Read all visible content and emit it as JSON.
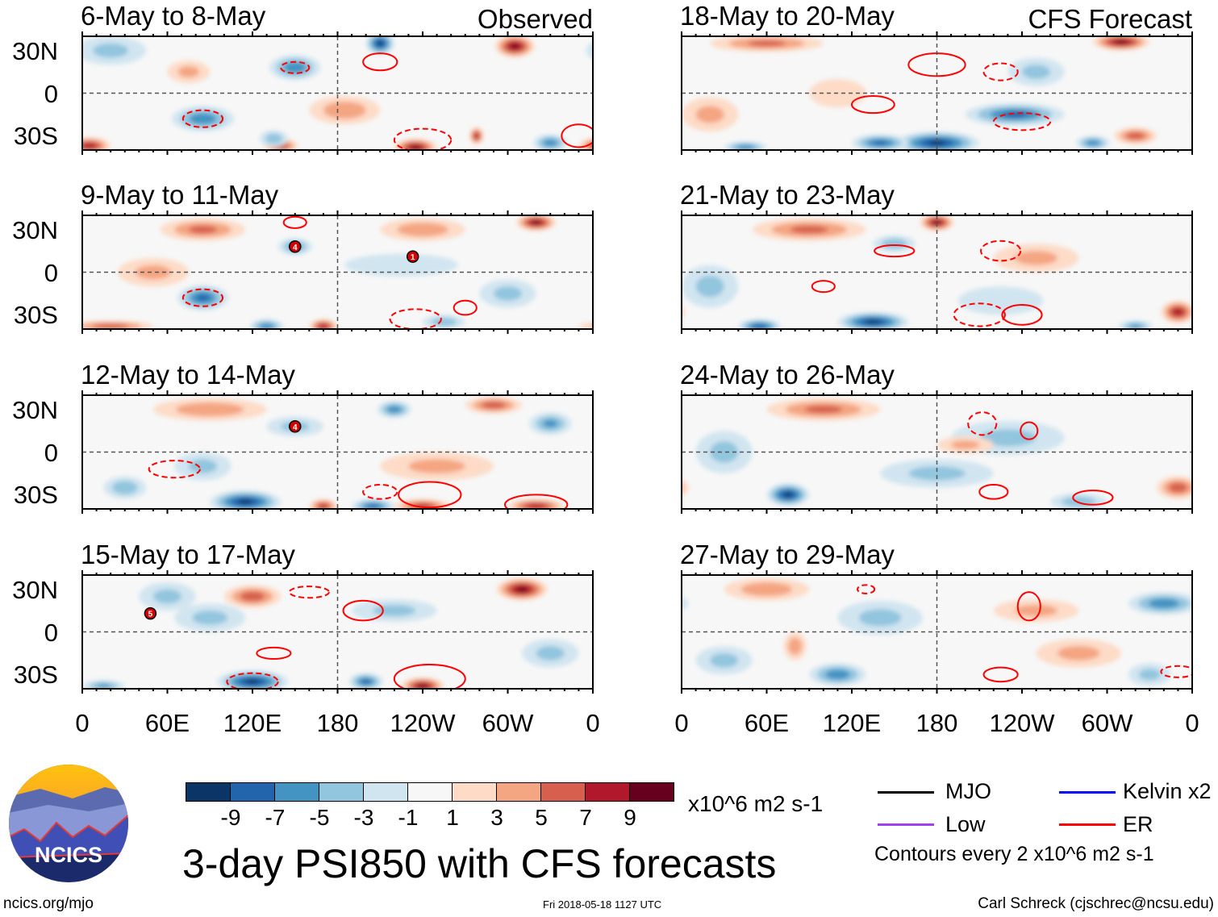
{
  "chart_data": {
    "type": "heatmap",
    "title": "3-day PSI850 with CFS forecasts",
    "units": "x10^6 m2 s-1",
    "x_ticks": [
      "0",
      "60E",
      "120E",
      "180",
      "120W",
      "60W",
      "0"
    ],
    "y_ticks": [
      "30N",
      "0",
      "30S"
    ],
    "lon_range": [
      0,
      360
    ],
    "lat_range": [
      -40,
      40
    ],
    "colorbar": {
      "labels": [
        "-9",
        "-7",
        "-5",
        "-3",
        "-1",
        "1",
        "3",
        "5",
        "7",
        "9"
      ],
      "colors": [
        "#0b3567",
        "#2265ad",
        "#4393c3",
        "#92c5de",
        "#d1e5f0",
        "#f7f7f7",
        "#fddbc7",
        "#f4a582",
        "#d6604d",
        "#b2182b",
        "#67001f"
      ]
    },
    "legend": {
      "items": [
        {
          "label": "MJO",
          "color": "#000000"
        },
        {
          "label": "Kelvin x2",
          "color": "#0000ff"
        },
        {
          "label": "Low",
          "color": "#a040f0"
        },
        {
          "label": "ER",
          "color": "#ff0000"
        }
      ],
      "contour_note": "Contours every 2 x10^6 m2 s-1"
    },
    "panels": [
      {
        "title": "6-May to 8-May",
        "label": "Observed",
        "anomalies": [
          [
            210,
            35,
            -9,
            10,
            8
          ],
          [
            150,
            18,
            -6,
            18,
            9
          ],
          [
            85,
            -18,
            -6,
            22,
            9
          ],
          [
            305,
            33,
            9,
            14,
            8
          ],
          [
            5,
            -37,
            8,
            15,
            6
          ],
          [
            140,
            -37,
            7,
            12,
            5
          ],
          [
            235,
            -38,
            9,
            15,
            6
          ],
          [
            278,
            -30,
            8,
            5,
            6
          ],
          [
            185,
            -12,
            4,
            25,
            10
          ],
          [
            75,
            15,
            3,
            15,
            8
          ],
          [
            330,
            -35,
            -6,
            12,
            6
          ],
          [
            20,
            30,
            -3,
            25,
            10
          ],
          [
            135,
            -32,
            -4,
            10,
            6
          ]
        ],
        "er_contours": [
          [
            150,
            18,
            10,
            4,
            1
          ],
          [
            210,
            22,
            12,
            6,
            0
          ],
          [
            85,
            -18,
            14,
            6,
            1
          ],
          [
            240,
            -33,
            20,
            8,
            1
          ],
          [
            350,
            -30,
            12,
            8,
            0
          ]
        ],
        "storms": []
      },
      {
        "title": "9-May to 11-May",
        "label": "",
        "anomalies": [
          [
            320,
            35,
            9,
            14,
            6
          ],
          [
            240,
            30,
            4,
            30,
            8
          ],
          [
            85,
            30,
            5,
            30,
            8
          ],
          [
            85,
            -18,
            -7,
            18,
            9
          ],
          [
            150,
            18,
            -5,
            12,
            6
          ],
          [
            170,
            -38,
            8,
            10,
            5
          ],
          [
            20,
            -38,
            6,
            30,
            4
          ],
          [
            225,
            5,
            -2,
            40,
            8
          ],
          [
            300,
            -15,
            -3,
            20,
            10
          ],
          [
            130,
            -38,
            -6,
            12,
            5
          ],
          [
            255,
            -35,
            -4,
            15,
            5
          ],
          [
            50,
            0,
            3,
            25,
            10
          ]
        ],
        "er_contours": [
          [
            85,
            -18,
            14,
            6,
            1
          ],
          [
            150,
            35,
            8,
            4,
            0
          ],
          [
            235,
            -33,
            18,
            7,
            1
          ],
          [
            270,
            -25,
            8,
            5,
            0
          ]
        ],
        "storms": [
          [
            150,
            18,
            "4"
          ],
          [
            233,
            11,
            "1"
          ]
        ]
      },
      {
        "title": "12-May to 14-May",
        "label": "",
        "anomalies": [
          [
            115,
            -35,
            -9,
            25,
            8
          ],
          [
            170,
            -38,
            7,
            10,
            5
          ],
          [
            205,
            -38,
            -7,
            15,
            5
          ],
          [
            240,
            -38,
            7,
            20,
            5
          ],
          [
            320,
            -38,
            8,
            20,
            5
          ],
          [
            220,
            30,
            -6,
            12,
            6
          ],
          [
            330,
            20,
            -5,
            15,
            8
          ],
          [
            290,
            33,
            6,
            20,
            6
          ],
          [
            90,
            30,
            4,
            40,
            8
          ],
          [
            150,
            18,
            -3,
            20,
            7
          ],
          [
            250,
            -10,
            3,
            40,
            10
          ],
          [
            30,
            -25,
            -4,
            15,
            8
          ],
          [
            85,
            -10,
            -3,
            20,
            10
          ]
        ],
        "er_contours": [
          [
            65,
            -12,
            18,
            6,
            1
          ],
          [
            245,
            -30,
            22,
            9,
            0
          ],
          [
            320,
            -37,
            22,
            7,
            0
          ],
          [
            210,
            -28,
            12,
            5,
            1
          ]
        ],
        "storms": [
          [
            150,
            18,
            "4"
          ]
        ]
      },
      {
        "title": "15-May to 17-May",
        "label": "",
        "anomalies": [
          [
            310,
            30,
            9,
            18,
            8
          ],
          [
            120,
            -35,
            -9,
            25,
            8
          ],
          [
            200,
            -35,
            -7,
            12,
            6
          ],
          [
            240,
            -38,
            9,
            15,
            6
          ],
          [
            120,
            25,
            6,
            20,
            8
          ],
          [
            90,
            10,
            -3,
            25,
            10
          ],
          [
            220,
            15,
            -3,
            30,
            8
          ],
          [
            330,
            -15,
            -3,
            20,
            10
          ],
          [
            15,
            -38,
            -5,
            15,
            4
          ],
          [
            60,
            25,
            -3,
            20,
            10
          ]
        ],
        "er_contours": [
          [
            198,
            15,
            14,
            7,
            0
          ],
          [
            160,
            28,
            14,
            4,
            1
          ],
          [
            135,
            -15,
            12,
            4,
            0
          ],
          [
            245,
            -33,
            25,
            10,
            0
          ],
          [
            120,
            -35,
            18,
            6,
            1
          ]
        ],
        "storms": [
          [
            48,
            13,
            "5"
          ]
        ]
      },
      {
        "title": "18-May to 20-May",
        "label": "CFS Forecast",
        "anomalies": [
          [
            310,
            36,
            9,
            20,
            6
          ],
          [
            180,
            -35,
            -9,
            30,
            8
          ],
          [
            235,
            -15,
            -7,
            35,
            8
          ],
          [
            60,
            35,
            5,
            40,
            6
          ],
          [
            250,
            15,
            -3,
            20,
            10
          ],
          [
            320,
            -30,
            6,
            15,
            6
          ],
          [
            45,
            -38,
            -6,
            15,
            4
          ],
          [
            290,
            -35,
            -6,
            12,
            5
          ],
          [
            140,
            -35,
            -7,
            20,
            6
          ],
          [
            20,
            -15,
            3,
            20,
            12
          ],
          [
            110,
            0,
            2,
            20,
            10
          ]
        ],
        "er_contours": [
          [
            180,
            20,
            20,
            8,
            0
          ],
          [
            135,
            -8,
            15,
            6,
            0
          ],
          [
            225,
            15,
            12,
            6,
            1
          ],
          [
            240,
            -20,
            20,
            6,
            1
          ]
        ],
        "storms": []
      },
      {
        "title": "21-May to 23-May",
        "label": "",
        "anomalies": [
          [
            180,
            35,
            9,
            12,
            6
          ],
          [
            90,
            30,
            5,
            40,
            8
          ],
          [
            135,
            -35,
            -9,
            25,
            7
          ],
          [
            55,
            -38,
            -8,
            15,
            5
          ],
          [
            150,
            20,
            -4,
            15,
            6
          ],
          [
            350,
            -28,
            8,
            12,
            8
          ],
          [
            320,
            -38,
            -5,
            12,
            4
          ],
          [
            250,
            10,
            3,
            30,
            10
          ],
          [
            20,
            -10,
            -3,
            20,
            15
          ],
          [
            225,
            -20,
            -2,
            30,
            10
          ]
        ],
        "er_contours": [
          [
            150,
            15,
            14,
            4,
            0
          ],
          [
            225,
            15,
            14,
            7,
            1
          ],
          [
            100,
            -10,
            8,
            4,
            0
          ],
          [
            210,
            -30,
            18,
            8,
            1
          ],
          [
            240,
            -30,
            14,
            7,
            0
          ]
        ],
        "storms": []
      },
      {
        "title": "24-May to 26-May",
        "label": "",
        "anomalies": [
          [
            75,
            -30,
            -9,
            15,
            8
          ],
          [
            100,
            30,
            5,
            40,
            8
          ],
          [
            280,
            -35,
            -4,
            20,
            6
          ],
          [
            350,
            -25,
            6,
            15,
            8
          ],
          [
            230,
            10,
            -3,
            40,
            12
          ],
          [
            180,
            -15,
            -3,
            40,
            10
          ],
          [
            30,
            0,
            -3,
            20,
            15
          ],
          [
            200,
            5,
            3,
            20,
            6
          ]
        ],
        "er_contours": [
          [
            212,
            20,
            10,
            8,
            1
          ],
          [
            245,
            15,
            6,
            6,
            0
          ],
          [
            220,
            -28,
            10,
            5,
            0
          ],
          [
            290,
            -32,
            14,
            5,
            0
          ]
        ],
        "storms": []
      },
      {
        "title": "27-May to 29-May",
        "label": "",
        "anomalies": [
          [
            110,
            -30,
            -6,
            20,
            8
          ],
          [
            340,
            20,
            -6,
            25,
            8
          ],
          [
            60,
            30,
            4,
            30,
            8
          ],
          [
            140,
            10,
            -3,
            30,
            12
          ],
          [
            250,
            15,
            3,
            30,
            8
          ],
          [
            280,
            -15,
            3,
            30,
            10
          ],
          [
            30,
            -20,
            -3,
            20,
            10
          ],
          [
            80,
            -10,
            4,
            8,
            10
          ],
          [
            330,
            -30,
            -3,
            15,
            8
          ]
        ],
        "er_contours": [
          [
            245,
            18,
            8,
            10,
            0
          ],
          [
            225,
            -30,
            12,
            5,
            0
          ],
          [
            350,
            -28,
            12,
            4,
            1
          ],
          [
            130,
            30,
            6,
            3,
            1
          ]
        ],
        "storms": []
      }
    ]
  },
  "footer": {
    "logo_text": "NCICS",
    "url": "ncics.org/mjo",
    "timestamp": "Fri 2018-05-18 1127 UTC",
    "credit": "Carl Schreck (cjschrec@ncsu.edu)"
  }
}
